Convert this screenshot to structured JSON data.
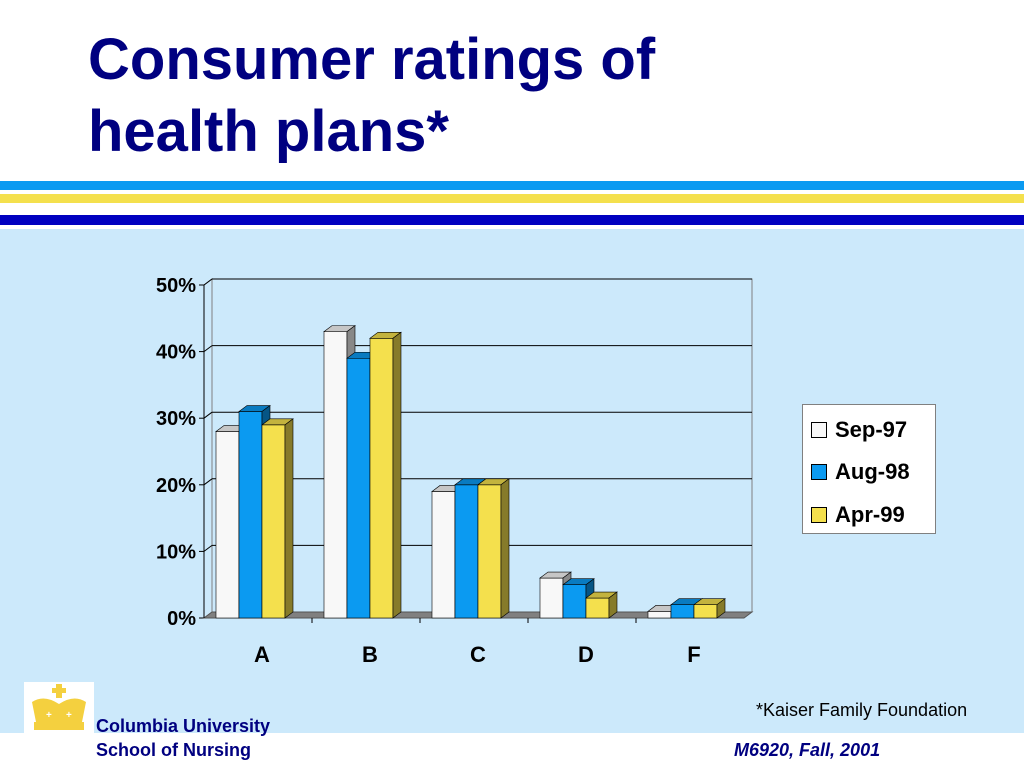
{
  "slide": {
    "title_line1": "Consumer ratings of",
    "title_line2": "health plans*",
    "source_note": "*Kaiser Family Foundation",
    "institution_line1": "Columbia University",
    "institution_line2": "School of Nursing",
    "course": "M6920, Fall, 2001",
    "logo_icon": "crown-icon"
  },
  "colors": {
    "title": "#000080",
    "content_bg": "#cce9fb",
    "stripe_blue": "#0b9af1",
    "stripe_yellow": "#f4e04d",
    "stripe_navy": "#0000c0",
    "crown": "#f4d03f"
  },
  "chart_data": {
    "type": "bar",
    "style": "3d-clustered",
    "categories": [
      "A",
      "B",
      "C",
      "D",
      "F"
    ],
    "series": [
      {
        "name": "Sep-97",
        "color": "#f8f8f8",
        "values": [
          28,
          43,
          19,
          6,
          1
        ]
      },
      {
        "name": "Aug-98",
        "color": "#0b9af1",
        "values": [
          31,
          39,
          20,
          5,
          2
        ]
      },
      {
        "name": "Apr-99",
        "color": "#f4e04d",
        "values": [
          29,
          42,
          20,
          3,
          2
        ]
      }
    ],
    "ylim": [
      0,
      50
    ],
    "yticks": [
      "0%",
      "10%",
      "20%",
      "30%",
      "40%",
      "50%"
    ],
    "ytick_values": [
      0,
      10,
      20,
      30,
      40,
      50
    ],
    "grid": true,
    "legend_position": "right"
  }
}
